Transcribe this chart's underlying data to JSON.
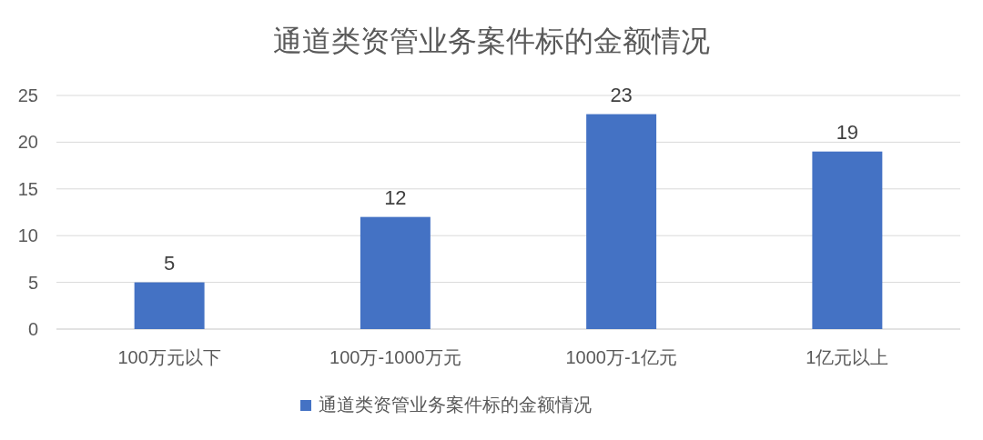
{
  "chart_data": {
    "type": "bar",
    "title": "通道类资管业务案件标的金额情况",
    "categories": [
      "100万元以下",
      "100万-1000万元",
      "1000万-1亿元",
      "1亿元以上"
    ],
    "series": [
      {
        "name": "通道类资管业务案件标的金额情况",
        "color": "#4472c4",
        "values": [
          5,
          12,
          23,
          19
        ]
      }
    ],
    "ylim": [
      0,
      25
    ],
    "yticks": [
      0,
      5,
      10,
      15,
      20,
      25
    ],
    "grid": "y",
    "legend": "bottom",
    "data_labels": true
  }
}
